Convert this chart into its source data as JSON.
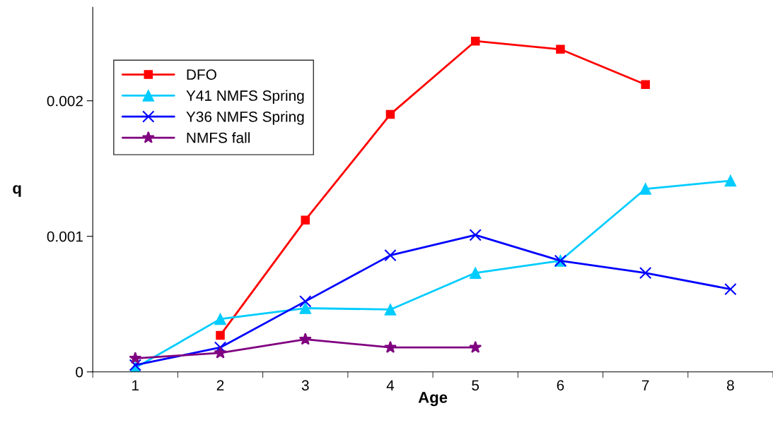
{
  "chart_data": {
    "type": "line",
    "xlabel": "Age",
    "ylabel": "q",
    "categories": [
      "1",
      "2",
      "3",
      "4",
      "5",
      "6",
      "7",
      "8"
    ],
    "series": [
      {
        "name": "DFO",
        "color": "#ff0000",
        "marker": "square",
        "values": [
          null,
          0.00027,
          0.00112,
          0.0019,
          0.00244,
          0.00238,
          0.00212,
          null
        ]
      },
      {
        "name": "Y41 NMFS Spring",
        "color": "#00ccff",
        "marker": "triangle",
        "values": [
          3e-05,
          0.00039,
          0.00047,
          0.00046,
          0.00073,
          0.00082,
          0.00135,
          0.00141
        ]
      },
      {
        "name": "Y36 NMFS Spring",
        "color": "#0000ff",
        "marker": "cross",
        "values": [
          5e-05,
          0.00018,
          0.00052,
          0.00086,
          0.00101,
          0.00082,
          0.00073,
          0.00061
        ]
      },
      {
        "name": "NMFS fall",
        "color": "#800080",
        "marker": "star",
        "values": [
          0.0001,
          0.00014,
          0.00024,
          0.00018,
          0.00018,
          null,
          null,
          null
        ]
      }
    ],
    "ylim": [
      0,
      0.00269
    ],
    "yticks": [
      0,
      0.001,
      0.002
    ],
    "grid": false,
    "legend": "top left",
    "line_style": "solid"
  }
}
